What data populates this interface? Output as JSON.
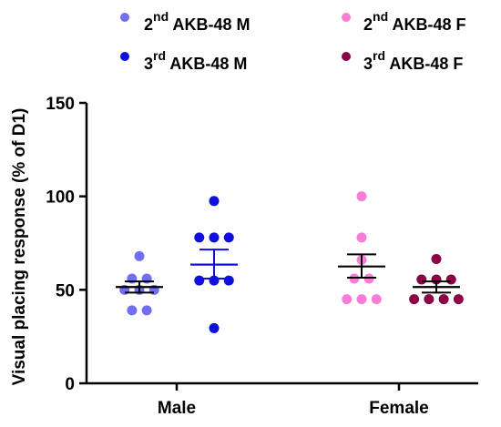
{
  "chart_data": {
    "type": "scatter",
    "ylabel": "Visual placing response (% of D1)",
    "xlabel": "",
    "ylim": [
      0,
      150
    ],
    "yticks": [
      0,
      50,
      100,
      150
    ],
    "categories": [
      "Male",
      "Female"
    ],
    "grid": false,
    "legend_position": "top",
    "legend": [
      {
        "prefix": "2",
        "sup": "nd",
        "suffix": " AKB-48 M",
        "color": "#6f6ff0"
      },
      {
        "prefix": "2",
        "sup": "nd",
        "suffix": " AKB-48 F",
        "color": "#f47ed8"
      },
      {
        "prefix": "3",
        "sup": "rd",
        "suffix": " AKB-48 M",
        "color": "#1010dd"
      },
      {
        "prefix": "3",
        "sup": "rd",
        "suffix": " AKB-48 F",
        "color": "#8b0046"
      }
    ],
    "series": [
      {
        "name": "2nd AKB-48 M",
        "category": "Male",
        "offset": -1,
        "color": "#6f6ff0",
        "values": [
          68,
          56,
          56,
          50,
          50,
          50,
          39,
          39
        ],
        "mean": 51.5,
        "sem_low": 48.5,
        "sem_high": 54.5,
        "bar_color": "#000000"
      },
      {
        "name": "3rd AKB-48 M",
        "category": "Male",
        "offset": 1,
        "color": "#1010dd",
        "values": [
          97.5,
          78,
          78,
          78,
          55,
          55,
          55,
          29.5
        ],
        "mean": 63.5,
        "sem_low": 56,
        "sem_high": 71.5,
        "bar_color": "#1010dd"
      },
      {
        "name": "2nd AKB-48 F",
        "category": "Female",
        "offset": -1,
        "color": "#f47ed8",
        "values": [
          100,
          78,
          66,
          56,
          56,
          45,
          45,
          45
        ],
        "mean": 62.5,
        "sem_low": 56.5,
        "sem_high": 69,
        "bar_color": "#000000"
      },
      {
        "name": "3rd AKB-48 F",
        "category": "Female",
        "offset": 1,
        "color": "#8b0046",
        "values": [
          66.5,
          55.5,
          55.5,
          55.5,
          45,
          45,
          45,
          45
        ],
        "mean": 51.5,
        "sem_low": 48.5,
        "sem_high": 54.5,
        "bar_color": "#000000"
      }
    ]
  }
}
